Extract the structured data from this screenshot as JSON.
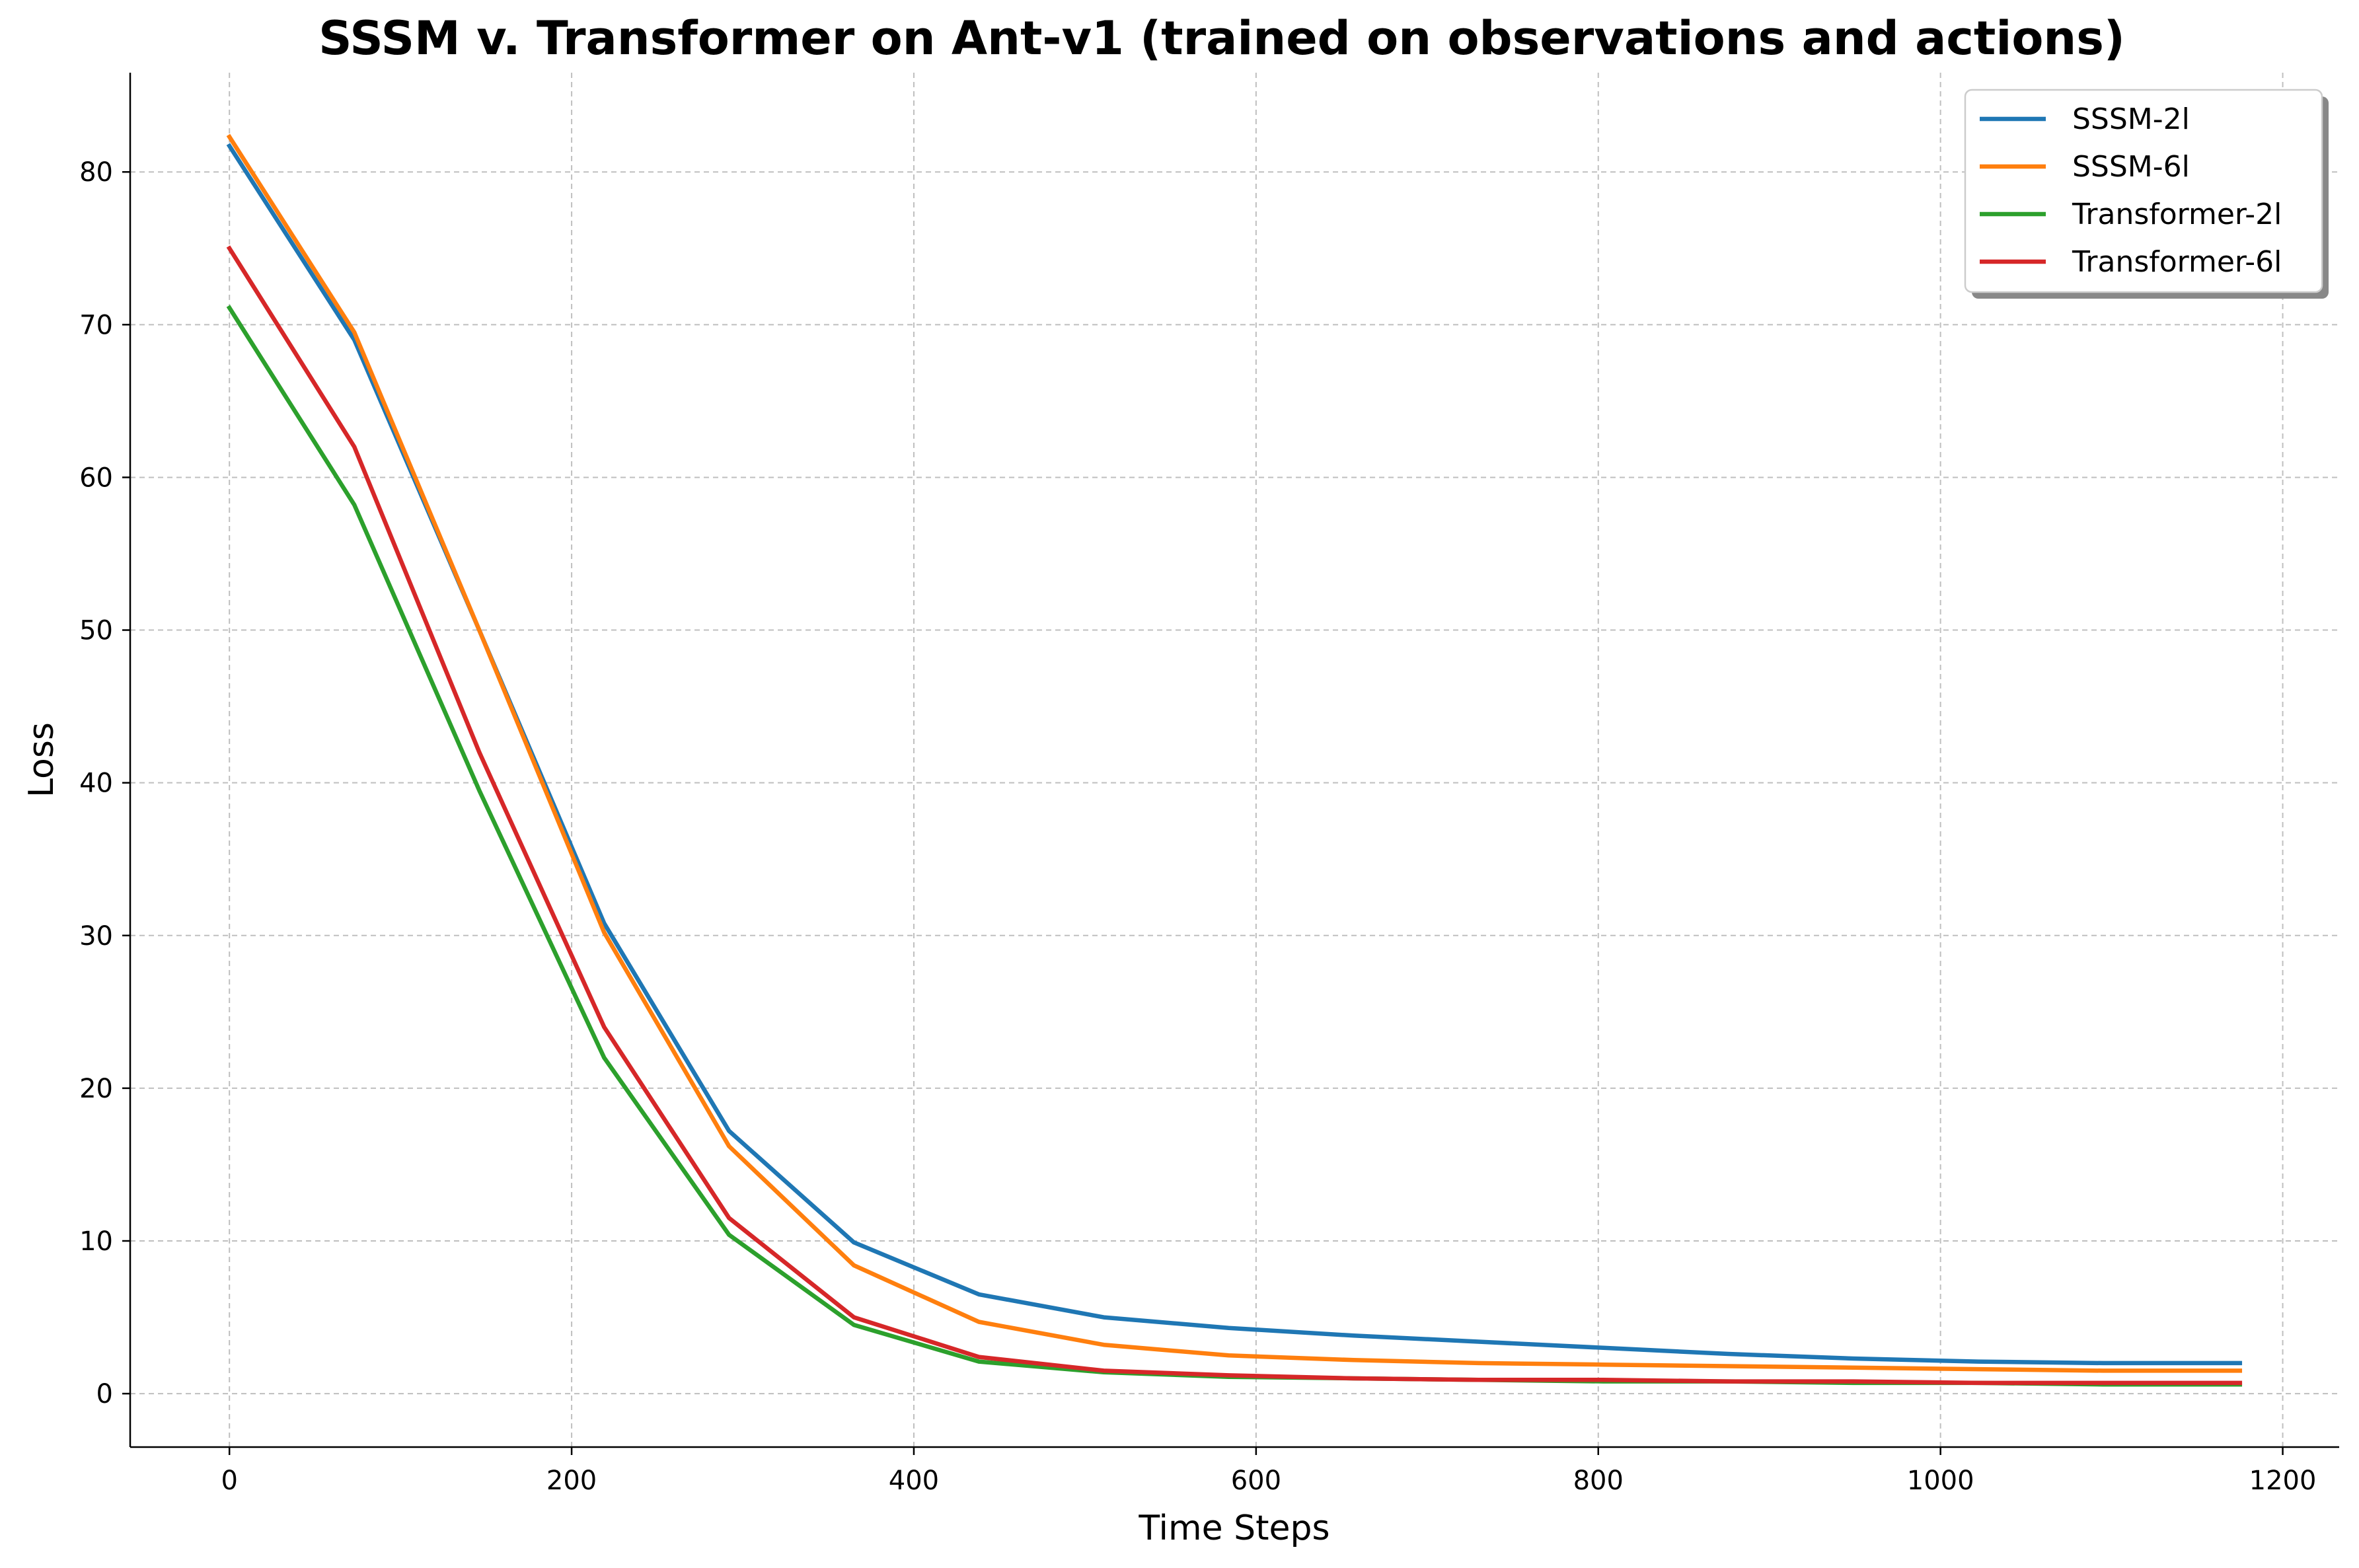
{
  "chart_data": {
    "type": "line",
    "title": "SSSM v. Transformer on Ant-v1 (trained on observations and actions)",
    "xlabel": "Time Steps",
    "ylabel": "Loss",
    "xlim": [
      -58,
      1233
    ],
    "ylim": [
      -3.5,
      86.5
    ],
    "xticks": [
      0,
      200,
      400,
      600,
      800,
      1000,
      1200
    ],
    "yticks": [
      0,
      10,
      20,
      30,
      40,
      50,
      60,
      70,
      80
    ],
    "grid": true,
    "legend_position": "top-right",
    "x": [
      0,
      73,
      146,
      219,
      292,
      365,
      438,
      511,
      584,
      657,
      730,
      803,
      876,
      949,
      1022,
      1095,
      1175
    ],
    "series": [
      {
        "name": "SSSM-2l",
        "color": "#1f77b4",
        "values": [
          81.7,
          69.0,
          50.0,
          30.8,
          17.2,
          9.9,
          6.5,
          5.0,
          4.3,
          3.8,
          3.4,
          3.0,
          2.6,
          2.3,
          2.1,
          2.0,
          2.0
        ]
      },
      {
        "name": "SSSM-6l",
        "color": "#ff7f0e",
        "values": [
          82.3,
          69.5,
          50.0,
          30.2,
          16.2,
          8.4,
          4.7,
          3.2,
          2.5,
          2.2,
          2.0,
          1.9,
          1.8,
          1.7,
          1.6,
          1.5,
          1.5
        ]
      },
      {
        "name": "Transformer-2l",
        "color": "#2ca02c",
        "values": [
          71.1,
          58.2,
          39.5,
          22.0,
          10.4,
          4.5,
          2.1,
          1.4,
          1.1,
          1.0,
          0.9,
          0.8,
          0.8,
          0.7,
          0.7,
          0.6,
          0.6
        ]
      },
      {
        "name": "Transformer-6l",
        "color": "#d62728",
        "values": [
          75.0,
          62.0,
          42.0,
          24.0,
          11.5,
          5.0,
          2.4,
          1.5,
          1.2,
          1.0,
          0.9,
          0.9,
          0.8,
          0.8,
          0.7,
          0.7,
          0.7
        ]
      }
    ]
  }
}
